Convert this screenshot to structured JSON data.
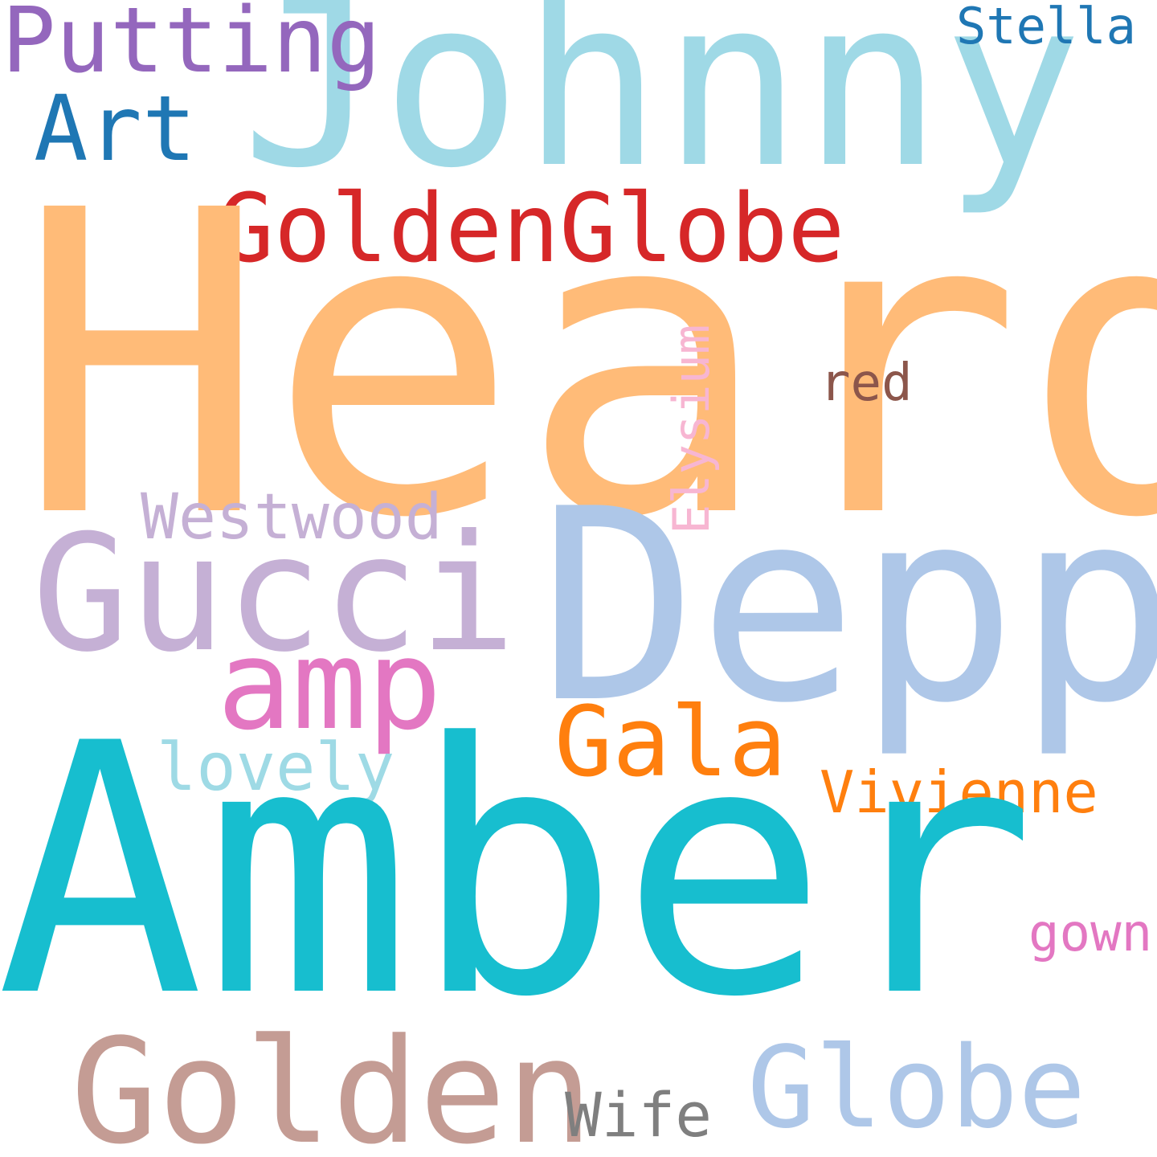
{
  "words": {
    "johnny": {
      "text": "Johnny",
      "color": "#9fd9e6"
    },
    "putting": {
      "text": "Putting",
      "color": "#9467bd"
    },
    "stella": {
      "text": "Stella",
      "color": "#1f77b4"
    },
    "art": {
      "text": "Art",
      "color": "#1f77b4"
    },
    "goldenglobe": {
      "text": "GoldenGlobe",
      "color": "#d62728"
    },
    "heard": {
      "text": "Heard",
      "color": "#ffbb78"
    },
    "elysium": {
      "text": "Elysium",
      "color": "#f7b6d2"
    },
    "red": {
      "text": "red",
      "color": "#8c564b"
    },
    "westwood": {
      "text": "Westwood",
      "color": "#c5b0d5"
    },
    "gucci": {
      "text": "Gucci",
      "color": "#c5b0d5"
    },
    "depp": {
      "text": "Depp",
      "color": "#aec7e8"
    },
    "amp": {
      "text": "amp",
      "color": "#e377c2"
    },
    "gala": {
      "text": "Gala",
      "color": "#ff7f0e"
    },
    "lovely": {
      "text": "lovely",
      "color": "#9edae5"
    },
    "vivienne": {
      "text": "Vivienne",
      "color": "#ff7f0e"
    },
    "amber": {
      "text": "Amber",
      "color": "#17becf"
    },
    "gown": {
      "text": "gown",
      "color": "#e377c2"
    },
    "golden": {
      "text": "Golden",
      "color": "#c49c94"
    },
    "globe": {
      "text": "Globe",
      "color": "#aec7e8"
    },
    "wife": {
      "text": "Wife",
      "color": "#7f7f7f"
    }
  }
}
